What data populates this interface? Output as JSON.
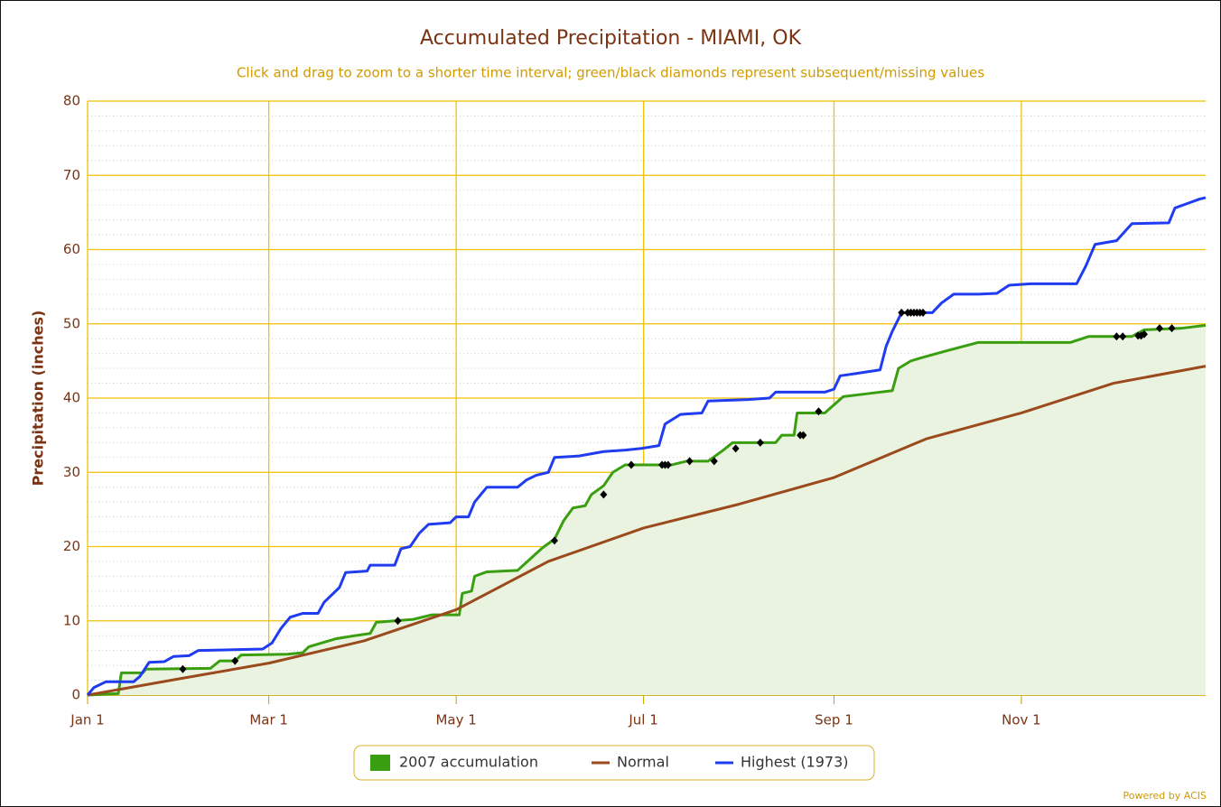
{
  "chart_data": {
    "type": "line",
    "title": "Accumulated Precipitation - MIAMI, OK",
    "subtitle": "Click and drag to zoom to a shorter time interval; green/black diamonds represent subsequent/missing values",
    "y_label": "Precipitation (inches)",
    "credit": "Powered by ACIS",
    "xlim": [
      0,
      364
    ],
    "xticks": [
      {
        "value": 0,
        "label": "Jan 1"
      },
      {
        "value": 59,
        "label": "Mar 1"
      },
      {
        "value": 120,
        "label": "May 1"
      },
      {
        "value": 181,
        "label": "Jul 1"
      },
      {
        "value": 243,
        "label": "Sep 1"
      },
      {
        "value": 304,
        "label": "Nov 1"
      }
    ],
    "ylim": [
      0,
      80
    ],
    "yticks": [
      0,
      10,
      20,
      30,
      40,
      50,
      60,
      70,
      80
    ],
    "minor_grid_step": 2,
    "grid": true,
    "legend": "bottom",
    "series": [
      {
        "name": "2007 accumulation",
        "color": "#3a9f10",
        "fill": "#e9f3df",
        "area": true,
        "x": [
          0,
          10,
          11,
          18,
          19,
          40,
          43,
          48,
          50,
          65,
          70,
          72,
          76,
          81,
          87,
          92,
          94,
          106,
          112,
          121,
          122,
          125,
          126,
          130,
          140,
          144,
          148,
          152,
          155,
          158,
          162,
          164,
          168,
          171,
          175,
          190,
          195,
          202,
          207,
          210,
          224,
          226,
          230,
          231,
          240,
          246,
          254,
          262,
          264,
          268,
          272,
          280,
          290,
          320,
          326,
          340,
          344,
          356,
          364
        ],
        "values": [
          0,
          0.2,
          3,
          3,
          3.5,
          3.6,
          4.6,
          4.6,
          5.4,
          5.5,
          5.7,
          6.5,
          7,
          7.6,
          8,
          8.3,
          9.8,
          10.2,
          10.8,
          10.8,
          13.7,
          14,
          16,
          16.6,
          16.8,
          18.3,
          19.8,
          21,
          23.5,
          25.2,
          25.5,
          27,
          28.2,
          30,
          31,
          31,
          31.5,
          31.5,
          33,
          34,
          34,
          35,
          35,
          38,
          38,
          40.2,
          40.6,
          41,
          44,
          45,
          45.5,
          46.4,
          47.5,
          47.5,
          48.3,
          48.3,
          49.2,
          49.4,
          49.8
        ]
      },
      {
        "name": "Normal",
        "color": "#9a4a1c",
        "x": [
          0,
          30,
          59,
          90,
          120,
          150,
          181,
          212,
          243,
          273,
          304,
          334,
          364
        ],
        "values": [
          0,
          2.2,
          4.3,
          7.3,
          11.5,
          18,
          22.5,
          25.7,
          29.3,
          34.5,
          38,
          42,
          44.3
        ]
      },
      {
        "name": "Highest (1973)",
        "color": "#1f3cf0",
        "x": [
          0,
          2,
          6,
          15,
          17,
          20,
          25,
          28,
          33,
          36,
          57,
          60,
          63,
          66,
          70,
          75,
          77,
          82,
          84,
          91,
          92,
          100,
          102,
          105,
          108,
          111,
          118,
          120,
          124,
          126,
          130,
          140,
          143,
          146,
          150,
          152,
          160,
          168,
          175,
          180,
          186,
          188,
          193,
          200,
          202,
          215,
          222,
          224,
          240,
          243,
          245,
          250,
          258,
          260,
          262,
          265,
          275,
          278,
          282,
          290,
          296,
          300,
          307,
          322,
          325,
          328,
          335,
          340,
          352,
          354,
          358,
          362,
          364
        ],
        "values": [
          0,
          1,
          1.8,
          1.8,
          2.5,
          4.4,
          4.5,
          5.2,
          5.3,
          6,
          6.2,
          7,
          9,
          10.5,
          11,
          11,
          12.5,
          14.5,
          16.5,
          16.7,
          17.5,
          17.5,
          19.7,
          20,
          21.8,
          23,
          23.2,
          24,
          24,
          26,
          28,
          28,
          29,
          29.6,
          30,
          32,
          32.2,
          32.8,
          33,
          33.2,
          33.6,
          36.5,
          37.8,
          38,
          39.6,
          39.8,
          40,
          40.8,
          40.8,
          41.2,
          43,
          43.3,
          43.8,
          47,
          49,
          51.5,
          51.5,
          52.8,
          54,
          54,
          54.1,
          55.2,
          55.4,
          55.4,
          57.8,
          60.7,
          61.2,
          63.5,
          63.6,
          65.6,
          66.2,
          66.8,
          67
        ]
      }
    ],
    "diamonds": {
      "color": "#000000",
      "x": [
        31,
        48,
        101,
        152,
        168,
        177,
        187,
        188,
        189,
        196,
        204,
        211,
        219,
        232,
        233,
        238,
        265,
        267,
        268,
        269,
        270,
        271,
        272,
        335,
        337,
        342,
        343,
        344,
        349,
        353
      ],
      "values": [
        3.5,
        4.6,
        10,
        20.8,
        27,
        31,
        31,
        31,
        31,
        31.5,
        31.5,
        33.2,
        34,
        35,
        35,
        38.2,
        51.5,
        51.5,
        51.5,
        51.5,
        51.5,
        51.5,
        51.5,
        48.3,
        48.3,
        48.4,
        48.4,
        48.6,
        49.4,
        49.4
      ]
    }
  }
}
